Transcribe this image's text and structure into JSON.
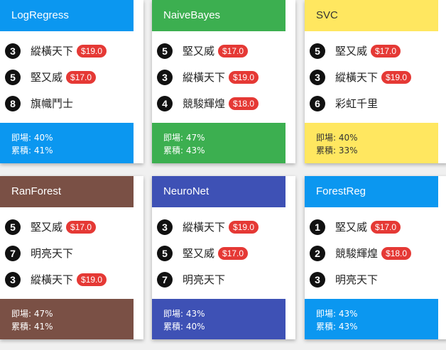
{
  "cards": [
    {
      "title": "LogRegress",
      "color": "#0b97f0",
      "text_dark": false,
      "rows": [
        {
          "num": "3",
          "name": "縱橫天下",
          "price": "$19.0"
        },
        {
          "num": "5",
          "name": "堅又威",
          "price": "$17.0"
        },
        {
          "num": "8",
          "name": "旗幟鬥士",
          "price": null
        }
      ],
      "stats": {
        "win_label": "即場: 40%",
        "cum_label": "累積: 41%"
      }
    },
    {
      "title": "NaiveBayes",
      "color": "#3caf50",
      "text_dark": false,
      "rows": [
        {
          "num": "5",
          "name": "堅又威",
          "price": "$17.0"
        },
        {
          "num": "3",
          "name": "縱橫天下",
          "price": "$19.0"
        },
        {
          "num": "4",
          "name": "競駿輝煌",
          "price": "$18.0"
        }
      ],
      "stats": {
        "win_label": "即場: 47%",
        "cum_label": "累積: 43%"
      }
    },
    {
      "title": "SVC",
      "color": "#ffe760",
      "text_dark": true,
      "rows": [
        {
          "num": "5",
          "name": "堅又威",
          "price": "$17.0"
        },
        {
          "num": "3",
          "name": "縱橫天下",
          "price": "$19.0"
        },
        {
          "num": "6",
          "name": "彩虹千里",
          "price": null
        }
      ],
      "stats": {
        "win_label": "即場: 40%",
        "cum_label": "累積: 33%"
      }
    },
    {
      "title": "RanForest",
      "color": "#7a5045",
      "text_dark": false,
      "rows": [
        {
          "num": "5",
          "name": "堅又威",
          "price": "$17.0"
        },
        {
          "num": "7",
          "name": "明亮天下",
          "price": null
        },
        {
          "num": "3",
          "name": "縱橫天下",
          "price": "$19.0"
        }
      ],
      "stats": {
        "win_label": "即場: 47%",
        "cum_label": "累積: 41%"
      }
    },
    {
      "title": "NeuroNet",
      "color": "#3e51b5",
      "text_dark": false,
      "rows": [
        {
          "num": "3",
          "name": "縱橫天下",
          "price": "$19.0"
        },
        {
          "num": "5",
          "name": "堅又威",
          "price": "$17.0"
        },
        {
          "num": "7",
          "name": "明亮天下",
          "price": null
        }
      ],
      "stats": {
        "win_label": "即場: 43%",
        "cum_label": "累積: 40%"
      }
    },
    {
      "title": "ForestReg",
      "color": "#0b97f0",
      "text_dark": false,
      "rows": [
        {
          "num": "1",
          "name": "堅又威",
          "price": "$17.0"
        },
        {
          "num": "2",
          "name": "競駿輝煌",
          "price": "$18.0"
        },
        {
          "num": "3",
          "name": "明亮天下",
          "price": null
        }
      ],
      "stats": {
        "win_label": "即場: 43%",
        "cum_label": "累積: 43%"
      }
    }
  ]
}
